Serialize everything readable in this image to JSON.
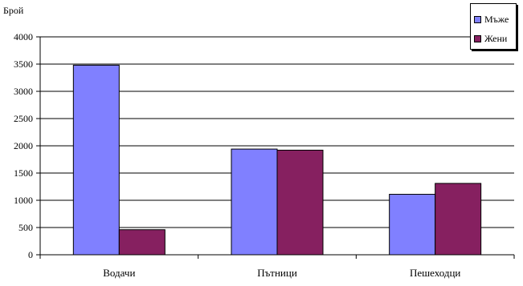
{
  "chart_data": {
    "type": "bar",
    "title": "",
    "xlabel": "",
    "ylabel": "Брой",
    "ylim": [
      0,
      4000
    ],
    "yticks": [
      0,
      500,
      1000,
      1500,
      2000,
      2500,
      3000,
      3500,
      4000
    ],
    "grid": true,
    "legend_position": "top-right",
    "categories": [
      "Водачи",
      "Пътници",
      "Пешеходци"
    ],
    "series": [
      {
        "name": "Мъже",
        "color": "#8080ff",
        "values": [
          3480,
          1940,
          1110
        ]
      },
      {
        "name": "Жени",
        "color": "#862060",
        "values": [
          460,
          1920,
          1310
        ]
      }
    ]
  }
}
